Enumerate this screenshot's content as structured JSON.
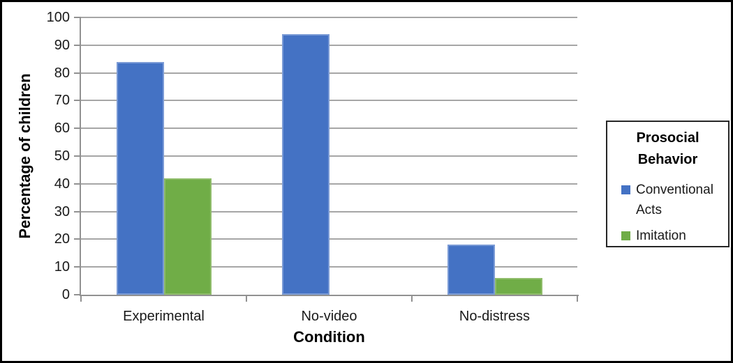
{
  "frame": {
    "background": "#ffffff",
    "border_color": "#000000"
  },
  "chart_data": {
    "type": "bar",
    "title": "",
    "categories": [
      "Experimental",
      "No-video",
      "No-distress"
    ],
    "series": [
      {
        "name": "Conventional Acts",
        "color": "#4472C4",
        "border_color": "#7b9bd6",
        "values": [
          84,
          94,
          18
        ]
      },
      {
        "name": "Imitation",
        "color": "#70AD47",
        "border_color": "#8fbc6a",
        "values": [
          42,
          0,
          6
        ]
      }
    ],
    "xlabel": "Condition",
    "ylabel": "Percentage of children",
    "ylim": [
      0,
      100
    ],
    "y_ticks": [
      0,
      10,
      20,
      30,
      40,
      50,
      60,
      70,
      80,
      90,
      100
    ],
    "grid": true,
    "gridline_color": "#a6a6a6",
    "axis_color": "#919191",
    "legend_position": "right"
  },
  "legend": {
    "title": "Prosocial Behavior",
    "items": [
      {
        "label": "Conventional Acts",
        "color": "#4472C4"
      },
      {
        "label": "Imitation",
        "color": "#70AD47"
      }
    ]
  }
}
